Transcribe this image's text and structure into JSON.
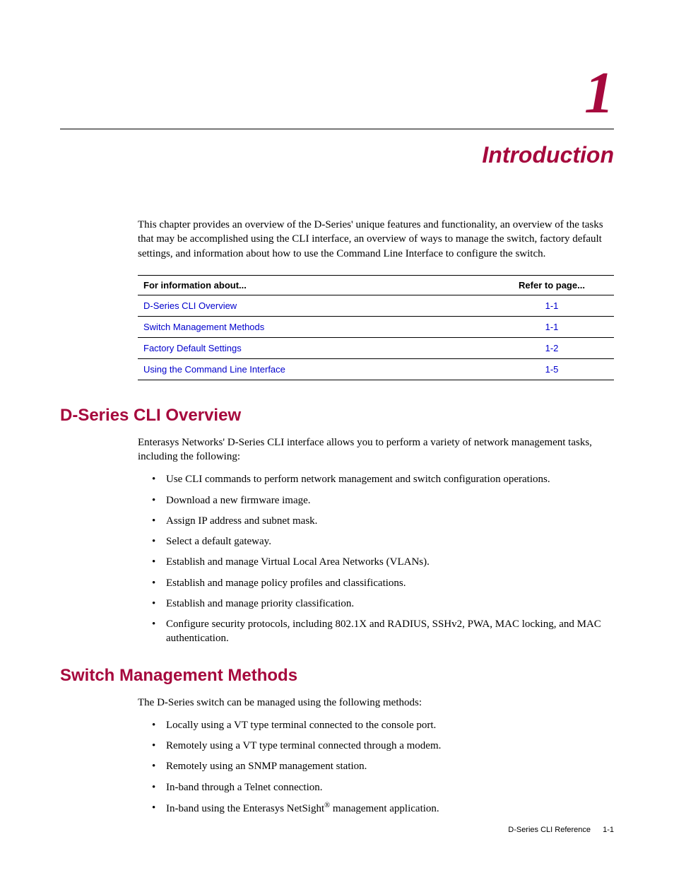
{
  "colors": {
    "brand": "#a6093d",
    "link": "#0000cc",
    "text": "#000000",
    "background": "#ffffff",
    "rule": "#000000"
  },
  "typography": {
    "chapter_number_fontsize": 84,
    "chapter_title_fontsize": 32,
    "section_heading_fontsize": 24,
    "body_fontsize": 15,
    "table_fontsize": 13,
    "footer_fontsize": 11,
    "body_font": "Georgia, Times New Roman, serif",
    "ui_font": "Arial, Helvetica, sans-serif"
  },
  "chapter": {
    "number": "1",
    "title": "Introduction"
  },
  "intro_paragraph": "This chapter provides an overview of the D-Series' unique features and functionality, an overview of the tasks that may be accomplished using the CLI interface, an overview of ways to manage the switch, factory default settings, and information about how to use the Command Line Interface to configure the switch.",
  "reference_table": {
    "type": "table",
    "columns": [
      "For information about...",
      "Refer to page..."
    ],
    "rows": [
      {
        "topic": "D-Series CLI Overview",
        "page": "1-1"
      },
      {
        "topic": "Switch Management Methods",
        "page": "1-1"
      },
      {
        "topic": "Factory Default Settings",
        "page": "1-2"
      },
      {
        "topic": "Using the Command Line Interface",
        "page": "1-5"
      }
    ]
  },
  "sections": {
    "overview": {
      "heading": "D-Series CLI Overview",
      "intro": "Enterasys Networks' D-Series CLI interface allows you to perform a variety of network management tasks, including the following:",
      "bullets": [
        "Use CLI commands to perform network management and switch configuration operations.",
        "Download a new firmware image.",
        "Assign IP address and subnet mask.",
        "Select a default gateway.",
        "Establish and manage Virtual Local Area Networks (VLANs).",
        "Establish and manage policy profiles and classifications.",
        "Establish and manage priority classification.",
        "Configure security protocols, including 802.1X and RADIUS, SSHv2, PWA, MAC locking, and MAC authentication."
      ]
    },
    "management": {
      "heading": "Switch Management Methods",
      "intro": "The D-Series switch can be managed using the following methods:",
      "bullets_html": [
        "Locally using a VT type terminal connected to the console port.",
        "Remotely using a VT type terminal connected through a modem.",
        "Remotely using an SNMP management station.",
        "In-band through a Telnet connection.",
        "In-band using the Enterasys NetSight<sup>®</sup> management application."
      ]
    }
  },
  "footer": {
    "doc_name": "D-Series CLI Reference",
    "page_number": "1-1"
  }
}
